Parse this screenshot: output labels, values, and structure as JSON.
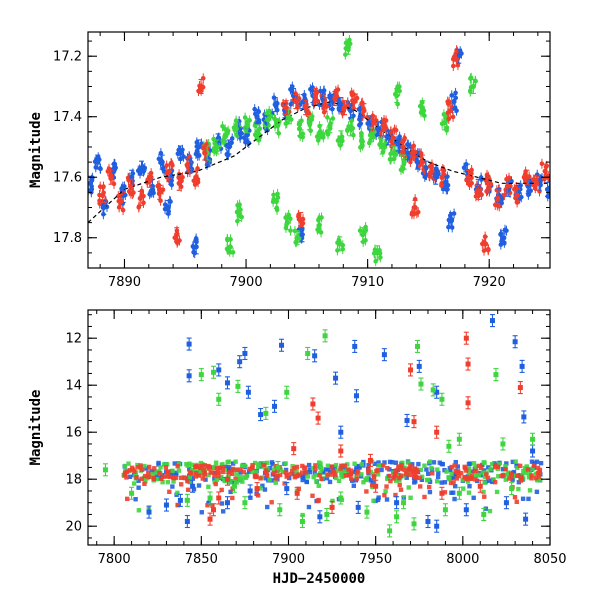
{
  "chart_data": [
    {
      "type": "scatter",
      "panel": "top",
      "xlabel": "",
      "ylabel": "Magnitude",
      "xlim": [
        7887,
        7925
      ],
      "ylim": [
        17.9,
        17.12
      ],
      "y_inverted": true,
      "xticks": [
        7890,
        7900,
        7910,
        7920
      ],
      "yticks": [
        17.2,
        17.4,
        17.6,
        17.8
      ],
      "grid": false,
      "legend": "none",
      "series": [
        {
          "color": "#1f5fe0",
          "points": [
            [
              7887.2,
              17.62
            ],
            [
              7887.8,
              17.55
            ],
            [
              7888.3,
              17.7
            ],
            [
              7889.1,
              17.58
            ],
            [
              7889.9,
              17.66
            ],
            [
              7890.6,
              17.6
            ],
            [
              7891.4,
              17.57
            ],
            [
              7892.3,
              17.63
            ],
            [
              7893.1,
              17.55
            ],
            [
              7893.8,
              17.6
            ],
            [
              7894.6,
              17.52
            ],
            [
              7895.4,
              17.56
            ],
            [
              7896.1,
              17.5
            ],
            [
              7896.9,
              17.54
            ],
            [
              7897.7,
              17.48
            ],
            [
              7898.6,
              17.5
            ],
            [
              7899.4,
              17.44
            ],
            [
              7900.1,
              17.46
            ],
            [
              7900.9,
              17.4
            ],
            [
              7901.7,
              17.42
            ],
            [
              7902.4,
              17.36
            ],
            [
              7903.2,
              17.38
            ],
            [
              7903.9,
              17.33
            ],
            [
              7904.7,
              17.35
            ],
            [
              7905.5,
              17.33
            ],
            [
              7906.3,
              17.34
            ],
            [
              7907.1,
              17.35
            ],
            [
              7907.8,
              17.36
            ],
            [
              7908.6,
              17.38
            ],
            [
              7909.4,
              17.4
            ],
            [
              7910.2,
              17.42
            ],
            [
              7910.9,
              17.44
            ],
            [
              7911.7,
              17.47
            ],
            [
              7912.5,
              17.49
            ],
            [
              7913.3,
              17.52
            ],
            [
              7914.1,
              17.55
            ],
            [
              7914.8,
              17.57
            ],
            [
              7915.6,
              17.6
            ],
            [
              7916.4,
              17.62
            ],
            [
              7917.1,
              17.35
            ],
            [
              7917.5,
              17.2
            ],
            [
              7918.2,
              17.58
            ],
            [
              7919.1,
              17.63
            ],
            [
              7919.9,
              17.62
            ],
            [
              7920.8,
              17.66
            ],
            [
              7921.6,
              17.64
            ],
            [
              7922.4,
              17.65
            ],
            [
              7923.2,
              17.63
            ],
            [
              7924.1,
              17.62
            ],
            [
              7924.8,
              17.64
            ],
            [
              7895.9,
              17.83
            ],
            [
              7904.6,
              17.79
            ],
            [
              7916.9,
              17.74
            ],
            [
              7921.2,
              17.8
            ],
            [
              7893.6,
              17.7
            ]
          ]
        },
        {
          "color": "#3ed63e",
          "points": [
            [
              7896.8,
              17.52
            ],
            [
              7897.6,
              17.5
            ],
            [
              7898.3,
              17.46
            ],
            [
              7899.2,
              17.44
            ],
            [
              7900.1,
              17.43
            ],
            [
              7900.9,
              17.45
            ],
            [
              7901.8,
              17.41
            ],
            [
              7902.6,
              17.43
            ],
            [
              7903.5,
              17.4
            ],
            [
              7904.4,
              17.44
            ],
            [
              7905.2,
              17.42
            ],
            [
              7906.1,
              17.45
            ],
            [
              7906.9,
              17.43
            ],
            [
              7907.8,
              17.47
            ],
            [
              7908.6,
              17.44
            ],
            [
              7909.5,
              17.48
            ],
            [
              7910.3,
              17.46
            ],
            [
              7911.2,
              17.5
            ],
            [
              7912.1,
              17.52
            ],
            [
              7913.0,
              17.55
            ],
            [
              7902.5,
              17.68
            ],
            [
              7903.4,
              17.75
            ],
            [
              7904.2,
              17.8
            ],
            [
              7906.0,
              17.76
            ],
            [
              7907.7,
              17.82
            ],
            [
              7909.6,
              17.79
            ],
            [
              7910.8,
              17.85
            ],
            [
              7898.7,
              17.83
            ],
            [
              7899.4,
              17.72
            ],
            [
              7908.4,
              17.17
            ],
            [
              7912.4,
              17.33
            ],
            [
              7914.5,
              17.37
            ],
            [
              7916.3,
              17.42
            ],
            [
              7918.7,
              17.3
            ]
          ]
        },
        {
          "color": "#f03e2e",
          "points": [
            [
              7888.2,
              17.66
            ],
            [
              7888.9,
              17.6
            ],
            [
              7889.7,
              17.68
            ],
            [
              7890.5,
              17.63
            ],
            [
              7891.3,
              17.67
            ],
            [
              7892.1,
              17.61
            ],
            [
              7892.9,
              17.65
            ],
            [
              7893.7,
              17.58
            ],
            [
              7894.5,
              17.62
            ],
            [
              7895.2,
              17.56
            ],
            [
              7895.9,
              17.6
            ],
            [
              7896.6,
              17.52
            ],
            [
              7903.3,
              17.37
            ],
            [
              7904.1,
              17.35
            ],
            [
              7904.9,
              17.37
            ],
            [
              7905.7,
              17.33
            ],
            [
              7906.5,
              17.36
            ],
            [
              7907.3,
              17.34
            ],
            [
              7908.1,
              17.37
            ],
            [
              7908.9,
              17.35
            ],
            [
              7909.7,
              17.38
            ],
            [
              7910.5,
              17.42
            ],
            [
              7911.3,
              17.44
            ],
            [
              7912.1,
              17.47
            ],
            [
              7912.9,
              17.5
            ],
            [
              7913.7,
              17.52
            ],
            [
              7914.5,
              17.55
            ],
            [
              7915.3,
              17.58
            ],
            [
              7916.1,
              17.6
            ],
            [
              7916.8,
              17.38
            ],
            [
              7917.3,
              17.21
            ],
            [
              7918.3,
              17.6
            ],
            [
              7919.1,
              17.65
            ],
            [
              7919.9,
              17.62
            ],
            [
              7920.7,
              17.67
            ],
            [
              7921.5,
              17.63
            ],
            [
              7922.3,
              17.66
            ],
            [
              7923.1,
              17.6
            ],
            [
              7923.9,
              17.62
            ],
            [
              7924.6,
              17.58
            ],
            [
              7894.3,
              17.79
            ],
            [
              7896.3,
              17.3
            ],
            [
              7904.5,
              17.74
            ],
            [
              7919.7,
              17.82
            ],
            [
              7913.9,
              17.7
            ]
          ]
        }
      ],
      "model_curve": {
        "color": "#000000",
        "points": [
          [
            7887,
            17.75
          ],
          [
            7890,
            17.64
          ],
          [
            7893,
            17.6
          ],
          [
            7896,
            17.58
          ],
          [
            7899,
            17.53
          ],
          [
            7901,
            17.47
          ],
          [
            7903,
            17.41
          ],
          [
            7905,
            17.37
          ],
          [
            7907,
            17.35
          ],
          [
            7909,
            17.38
          ],
          [
            7911,
            17.44
          ],
          [
            7913,
            17.5
          ],
          [
            7915,
            17.55
          ],
          [
            7917,
            17.58
          ],
          [
            7919,
            17.6
          ],
          [
            7921,
            17.62
          ],
          [
            7923,
            17.62
          ],
          [
            7925,
            17.62
          ]
        ]
      }
    },
    {
      "type": "scatter",
      "panel": "bottom",
      "xlabel": "HJD−2450000",
      "ylabel": "Magnitude",
      "xlim": [
        7785,
        8050
      ],
      "ylim": [
        20.8,
        10.8
      ],
      "y_inverted": true,
      "xticks": [
        7800,
        7850,
        7900,
        7950,
        8000,
        8050
      ],
      "yticks": [
        12,
        14,
        16,
        18,
        20
      ],
      "grid": false,
      "legend": "none",
      "series": [
        {
          "color": "#1f5fe0",
          "points": [
            [
              7843,
              12.25
            ],
            [
              7843,
              13.6
            ],
            [
              7860,
              13.35
            ],
            [
              7865,
              13.9
            ],
            [
              7872,
              13.0
            ],
            [
              7875,
              12.65
            ],
            [
              7877,
              14.3
            ],
            [
              7884,
              15.25
            ],
            [
              7892,
              14.9
            ],
            [
              7896,
              12.3
            ],
            [
              7915,
              12.75
            ],
            [
              7927,
              13.7
            ],
            [
              7939,
              14.45
            ],
            [
              7938,
              12.35
            ],
            [
              7955,
              12.7
            ],
            [
              7975,
              13.2
            ],
            [
              7985,
              14.3
            ],
            [
              8017,
              11.25
            ],
            [
              8030,
              12.15
            ],
            [
              8034,
              13.2
            ],
            [
              8035,
              15.35
            ],
            [
              8040,
              16.8
            ],
            [
              7930,
              16.0
            ],
            [
              7968,
              15.5
            ],
            [
              7820,
              19.4
            ],
            [
              7830,
              19.1
            ],
            [
              7838,
              18.9
            ],
            [
              7845,
              18.3
            ],
            [
              7865,
              19.0
            ],
            [
              7878,
              18.5
            ],
            [
              7899,
              18.4
            ],
            [
              7918,
              19.6
            ],
            [
              7940,
              19.2
            ],
            [
              7962,
              19.0
            ],
            [
              7980,
              19.8
            ],
            [
              8002,
              19.3
            ],
            [
              8025,
              19.0
            ],
            [
              8036,
              19.7
            ],
            [
              7985,
              20.0
            ],
            [
              7842,
              19.8
            ]
          ]
        },
        {
          "color": "#3ed63e",
          "points": [
            [
              7795,
              17.6
            ],
            [
              7850,
              13.55
            ],
            [
              7857,
              13.45
            ],
            [
              7860,
              14.6
            ],
            [
              7871,
              14.05
            ],
            [
              7887,
              15.2
            ],
            [
              7899,
              14.3
            ],
            [
              7921,
              11.9
            ],
            [
              7911,
              12.65
            ],
            [
              7974,
              12.35
            ],
            [
              7976,
              13.95
            ],
            [
              7983,
              14.2
            ],
            [
              7988,
              14.6
            ],
            [
              7998,
              16.3
            ],
            [
              8019,
              13.55
            ],
            [
              8023,
              16.5
            ],
            [
              8040,
              16.3
            ],
            [
              7992,
              16.6
            ],
            [
              7894,
              17.5
            ],
            [
              7810,
              18.6
            ],
            [
              7855,
              18.8
            ],
            [
              7869,
              18.3
            ],
            [
              7895,
              19.3
            ],
            [
              7908,
              19.8
            ],
            [
              7922,
              19.5
            ],
            [
              7930,
              18.8
            ],
            [
              7945,
              19.4
            ],
            [
              7958,
              20.2
            ],
            [
              7966,
              19.0
            ],
            [
              7972,
              19.9
            ],
            [
              7990,
              19.3
            ],
            [
              7998,
              18.6
            ],
            [
              8012,
              19.5
            ],
            [
              8028,
              18.4
            ],
            [
              7875,
              19.0
            ],
            [
              7842,
              18.9
            ],
            [
              7962,
              19.6
            ]
          ]
        },
        {
          "color": "#f03e2e",
          "points": [
            [
              7903,
              16.7
            ],
            [
              7914,
              14.8
            ],
            [
              7917,
              15.4
            ],
            [
              7930,
              16.8
            ],
            [
              7947,
              17.2
            ],
            [
              7970,
              13.35
            ],
            [
              7972,
              15.55
            ],
            [
              7985,
              16.0
            ],
            [
              8002,
              12.0
            ],
            [
              8003,
              13.1
            ],
            [
              8003,
              14.75
            ],
            [
              8033,
              14.1
            ],
            [
              7857,
              19.3
            ],
            [
              7860,
              18.8
            ],
            [
              7882,
              18.4
            ],
            [
              7905,
              18.6
            ],
            [
              7925,
              19.2
            ],
            [
              7950,
              18.3
            ],
            [
              7988,
              18.6
            ],
            [
              8010,
              18.3
            ],
            [
              7855,
              19.7
            ],
            [
              7865,
              18.0
            ]
          ]
        }
      ],
      "baseline": {
        "from": 7805,
        "to": 8045,
        "magnitude": 17.7,
        "colors": [
          "#1f5fe0",
          "#3ed63e",
          "#f03e2e"
        ]
      }
    }
  ]
}
